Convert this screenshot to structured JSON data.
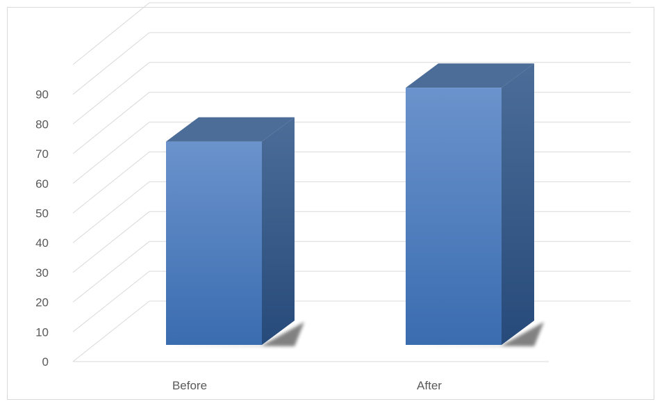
{
  "chart_data": {
    "type": "bar",
    "style": "3d-column",
    "categories": [
      "Before",
      "After"
    ],
    "values": [
      68,
      86
    ],
    "ylim": [
      0,
      100
    ],
    "yticks": [
      0,
      10,
      20,
      30,
      40,
      50,
      60,
      70,
      80,
      90
    ],
    "grid": true,
    "colors": {
      "front_top": "#6b93cc",
      "front_bottom": "#3a6cb0",
      "side": "#2f5589",
      "top": "#4c6d98",
      "shadow": "#1a1a1a",
      "grid": "#d9d9d9",
      "axis_text": "#595959"
    }
  }
}
